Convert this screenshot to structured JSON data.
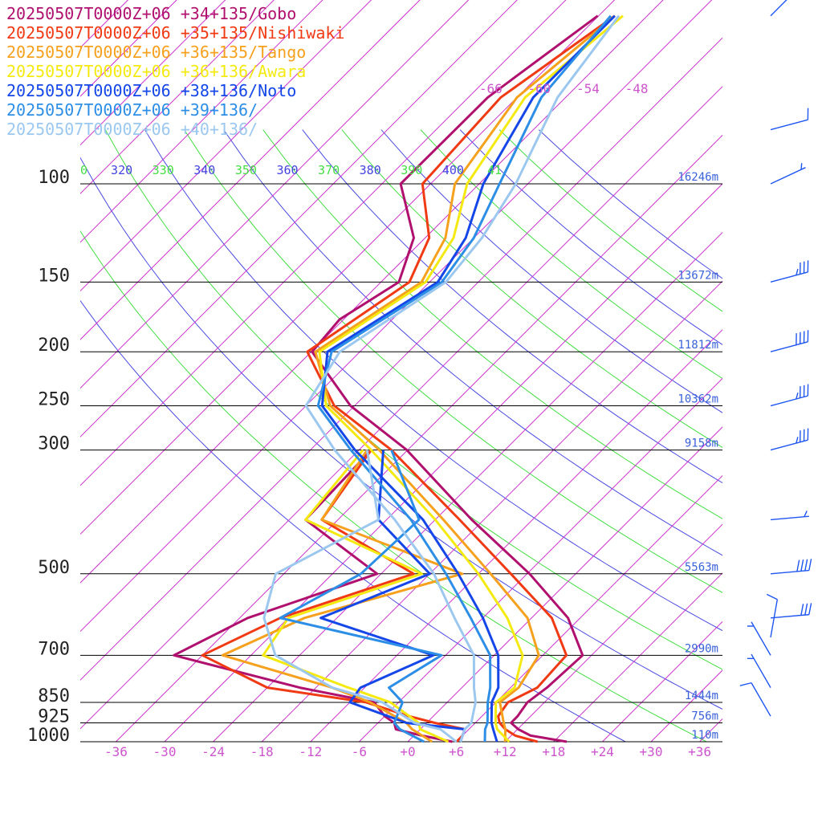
{
  "legend": [
    {
      "label": "20250507T0000Z+06 +34+135/Gobo",
      "color": "#b0106e"
    },
    {
      "label": "20250507T0000Z+06 +35+135/Nishiwaki",
      "color": "#f03a14"
    },
    {
      "label": "20250507T0000Z+06 +36+135/Tango",
      "color": "#f6a11e"
    },
    {
      "label": "20250507T0000Z+06 +36+136/Awara",
      "color": "#f4ea12"
    },
    {
      "label": "20250507T0000Z+06 +38+136/Noto",
      "color": "#1446e8"
    },
    {
      "label": "20250507T0000Z+06 +39+136/",
      "color": "#2d8ee6"
    },
    {
      "label": "20250507T0000Z+06 +40+136/",
      "color": "#9cc8f0"
    }
  ],
  "chart_data": {
    "type": "line",
    "chart_kind": "skew-t log-p sounding",
    "pressure_axis": {
      "levels": [
        100,
        150,
        200,
        250,
        300,
        500,
        700,
        850,
        925,
        1000
      ],
      "labels": [
        "100",
        "150",
        "200",
        "250",
        "300",
        "500",
        "700",
        "850",
        "925",
        "1000"
      ],
      "heights": [
        "16246m",
        "13672m",
        "11812m",
        "10362m",
        "9158m",
        "5563m",
        "2990m",
        "1444m",
        "756m",
        "110m"
      ]
    },
    "temperature_axis": {
      "ticks": [
        -36,
        -30,
        -24,
        -18,
        -12,
        -6,
        0,
        6,
        12,
        18,
        24,
        30,
        36
      ],
      "labels": [
        "-36",
        "-30",
        "-24",
        "-18",
        "-12",
        "-6",
        "+0",
        "+6",
        "+12",
        "+18",
        "+24",
        "+30",
        "+36"
      ]
    },
    "isotherm_top_labels": [
      "-66",
      "-60",
      "-54",
      "-48"
    ],
    "theta_labels": [
      {
        "text": "0",
        "color": "#44dd44"
      },
      {
        "text": "320",
        "color": "#4444dd"
      },
      {
        "text": "330",
        "color": "#44dd44"
      },
      {
        "text": "340",
        "color": "#4444dd"
      },
      {
        "text": "350",
        "color": "#44dd44"
      },
      {
        "text": "360",
        "color": "#4444dd"
      },
      {
        "text": "370",
        "color": "#44dd44"
      },
      {
        "text": "380",
        "color": "#4444dd"
      },
      {
        "text": "390",
        "color": "#44dd44"
      },
      {
        "text": "400",
        "color": "#4444dd"
      },
      {
        "text": "41",
        "color": "#44dd44"
      }
    ],
    "series": [
      {
        "name": "20250507T0000Z+06 +34+135/Gobo",
        "color": "#b0106e",
        "temperature": [
          [
            1000,
            19.6
          ],
          [
            975,
            14.4
          ],
          [
            950,
            12.1
          ],
          [
            925,
            10.4
          ],
          [
            900,
            10.4
          ],
          [
            850,
            9.9
          ],
          [
            800,
            10.5
          ],
          [
            700,
            10.9
          ],
          [
            600,
            4.5
          ],
          [
            500,
            -5.7
          ],
          [
            400,
            -19.5
          ],
          [
            300,
            -36.1
          ],
          [
            250,
            -48.5
          ],
          [
            200,
            -59.9
          ],
          [
            175,
            -60.5
          ],
          [
            150,
            -57.8
          ],
          [
            125,
            -61.4
          ],
          [
            100,
            -69.7
          ],
          [
            70,
            -69.6
          ],
          [
            50,
            -66.1
          ]
        ],
        "dewpoint": [
          [
            1000,
            5.5
          ],
          [
            975,
            1.0
          ],
          [
            950,
            -3.0
          ],
          [
            925,
            -4.0
          ],
          [
            900,
            -6.0
          ],
          [
            850,
            -9.0
          ],
          [
            800,
            -20.0
          ],
          [
            700,
            -39.5
          ],
          [
            600,
            -35.0
          ],
          [
            500,
            -24.5
          ],
          [
            400,
            -40.0
          ],
          [
            300,
            -40.5
          ]
        ]
      },
      {
        "name": "20250507T0000Z+06 +35+135/Nishiwaki",
        "color": "#f03a14",
        "temperature": [
          [
            1000,
            16.0
          ],
          [
            975,
            12.5
          ],
          [
            950,
            10.5
          ],
          [
            925,
            9.0
          ],
          [
            900,
            8.0
          ],
          [
            850,
            7.5
          ],
          [
            800,
            9.3
          ],
          [
            700,
            8.9
          ],
          [
            600,
            2.5
          ],
          [
            500,
            -8.0
          ],
          [
            400,
            -21.0
          ],
          [
            300,
            -38.0
          ],
          [
            250,
            -50.5
          ],
          [
            200,
            -60.5
          ],
          [
            150,
            -56.5
          ],
          [
            125,
            -59.5
          ],
          [
            100,
            -67.0
          ],
          [
            70,
            -68.0
          ],
          [
            50,
            -64.0
          ]
        ],
        "dewpoint": [
          [
            1000,
            6.0
          ],
          [
            975,
            6.0
          ],
          [
            950,
            5.5
          ],
          [
            925,
            1.0
          ],
          [
            900,
            -3.0
          ],
          [
            850,
            -10.0
          ],
          [
            800,
            -24.0
          ],
          [
            700,
            -36.0
          ],
          [
            600,
            -31.0
          ],
          [
            500,
            -20.0
          ],
          [
            400,
            -38.0
          ],
          [
            300,
            -40.5
          ]
        ]
      },
      {
        "name": "20250507T0000Z+06 +36+135/Tango",
        "color": "#f6a11e",
        "temperature": [
          [
            1000,
            12.0
          ],
          [
            950,
            10.5
          ],
          [
            925,
            9.5
          ],
          [
            850,
            6.5
          ],
          [
            800,
            7.0
          ],
          [
            700,
            5.5
          ],
          [
            600,
            -0.5
          ],
          [
            500,
            -10.5
          ],
          [
            400,
            -23.0
          ],
          [
            300,
            -39.5
          ],
          [
            250,
            -51.0
          ],
          [
            200,
            -59.5
          ],
          [
            150,
            -55.0
          ],
          [
            125,
            -57.5
          ],
          [
            100,
            -63.0
          ],
          [
            70,
            -66.0
          ],
          [
            50,
            -64.0
          ]
        ],
        "dewpoint": [
          [
            1000,
            3.0
          ],
          [
            950,
            -1.0
          ],
          [
            925,
            -2.5
          ],
          [
            850,
            -9.5
          ],
          [
            800,
            -16.0
          ],
          [
            700,
            -33.5
          ],
          [
            600,
            -28.0
          ],
          [
            500,
            -14.0
          ],
          [
            400,
            -38.0
          ],
          [
            300,
            -41.0
          ]
        ]
      },
      {
        "name": "20250507T0000Z+06 +36+136/Awara",
        "color": "#f4ea12",
        "temperature": [
          [
            1000,
            12.5
          ],
          [
            950,
            9.5
          ],
          [
            925,
            8.5
          ],
          [
            850,
            6.0
          ],
          [
            800,
            6.5
          ],
          [
            700,
            3.5
          ],
          [
            600,
            -3.0
          ],
          [
            500,
            -12.0
          ],
          [
            400,
            -24.0
          ],
          [
            300,
            -40.5
          ],
          [
            250,
            -51.5
          ],
          [
            200,
            -59.0
          ],
          [
            150,
            -54.5
          ],
          [
            125,
            -56.5
          ],
          [
            100,
            -61.5
          ],
          [
            70,
            -65.0
          ],
          [
            50,
            -63.0
          ]
        ],
        "dewpoint": [
          [
            1000,
            5.0
          ],
          [
            950,
            0.0
          ],
          [
            925,
            -1.0
          ],
          [
            850,
            -7.0
          ],
          [
            800,
            -14.0
          ],
          [
            700,
            -28.5
          ],
          [
            600,
            -30.0
          ],
          [
            500,
            -19.0
          ],
          [
            400,
            -40.0
          ],
          [
            300,
            -41.5
          ]
        ]
      },
      {
        "name": "20250507T0000Z+06 +38+136/Noto",
        "color": "#1446e8",
        "temperature": [
          [
            1000,
            11.0
          ],
          [
            950,
            9.0
          ],
          [
            925,
            8.0
          ],
          [
            850,
            5.5
          ],
          [
            800,
            4.5
          ],
          [
            700,
            0.5
          ],
          [
            600,
            -6.0
          ],
          [
            500,
            -14.5
          ],
          [
            400,
            -25.5
          ],
          [
            300,
            -42.5
          ],
          [
            250,
            -52.0
          ],
          [
            200,
            -58.0
          ],
          [
            150,
            -53.0
          ],
          [
            125,
            -55.0
          ],
          [
            100,
            -59.5
          ],
          [
            70,
            -64.0
          ],
          [
            50,
            -64.0
          ]
        ],
        "dewpoint": [
          [
            1000,
            6.5
          ],
          [
            950,
            5.5
          ],
          [
            925,
            -2.5
          ],
          [
            850,
            -12.0
          ],
          [
            800,
            -12.5
          ],
          [
            700,
            -7.5
          ],
          [
            600,
            -26.0
          ],
          [
            500,
            -18.0
          ],
          [
            400,
            -31.0
          ],
          [
            300,
            -39.0
          ]
        ]
      },
      {
        "name": "20250507T0000Z+06 +39+136/",
        "color": "#2d8ee6",
        "temperature": [
          [
            1000,
            9.5
          ],
          [
            950,
            8.0
          ],
          [
            925,
            7.5
          ],
          [
            850,
            5.0
          ],
          [
            800,
            3.5
          ],
          [
            700,
            -0.5
          ],
          [
            600,
            -7.5
          ],
          [
            500,
            -16.0
          ],
          [
            400,
            -27.0
          ],
          [
            300,
            -43.0
          ],
          [
            250,
            -52.5
          ],
          [
            200,
            -57.5
          ],
          [
            150,
            -52.5
          ],
          [
            125,
            -54.0
          ],
          [
            100,
            -57.5
          ],
          [
            70,
            -63.0
          ],
          [
            50,
            -64.5
          ]
        ],
        "dewpoint": [
          [
            1000,
            2.0
          ],
          [
            950,
            -2.5
          ],
          [
            925,
            -4.0
          ],
          [
            850,
            -5.5
          ],
          [
            800,
            -9.0
          ],
          [
            700,
            -6.5
          ],
          [
            600,
            -31.0
          ],
          [
            500,
            -26.5
          ],
          [
            400,
            -26.0
          ],
          [
            300,
            -38.0
          ]
        ]
      },
      {
        "name": "20250507T0000Z+06 +40+136/",
        "color": "#9cc8f0",
        "temperature": [
          [
            1000,
            6.5
          ],
          [
            950,
            5.5
          ],
          [
            925,
            5.5
          ],
          [
            850,
            3.5
          ],
          [
            800,
            1.5
          ],
          [
            700,
            -2.5
          ],
          [
            600,
            -9.5
          ],
          [
            500,
            -17.5
          ],
          [
            400,
            -29.0
          ],
          [
            300,
            -45.0
          ],
          [
            250,
            -54.0
          ],
          [
            200,
            -56.5
          ],
          [
            150,
            -52.0
          ],
          [
            125,
            -53.0
          ],
          [
            100,
            -55.5
          ],
          [
            70,
            -61.0
          ],
          [
            50,
            -63.5
          ]
        ],
        "dewpoint": [
          [
            1000,
            6.0
          ],
          [
            950,
            2.5
          ],
          [
            925,
            -1.5
          ],
          [
            850,
            -8.0
          ],
          [
            800,
            -16.0
          ],
          [
            700,
            -27.0
          ],
          [
            600,
            -33.0
          ],
          [
            500,
            -37.0
          ],
          [
            400,
            -31.0
          ],
          [
            300,
            -41.0
          ]
        ]
      }
    ],
    "wind_barbs": [
      {
        "pressure": 50,
        "direction_deg": 225,
        "speed_kt": 5
      },
      {
        "pressure": 80,
        "direction_deg": 255,
        "speed_kt": 10
      },
      {
        "pressure": 100,
        "direction_deg": 245,
        "speed_kt": 5
      },
      {
        "pressure": 150,
        "direction_deg": 255,
        "speed_kt": 35
      },
      {
        "pressure": 200,
        "direction_deg": 255,
        "speed_kt": 40
      },
      {
        "pressure": 250,
        "direction_deg": 255,
        "speed_kt": 35
      },
      {
        "pressure": 300,
        "direction_deg": 255,
        "speed_kt": 35
      },
      {
        "pressure": 400,
        "direction_deg": 265,
        "speed_kt": 5
      },
      {
        "pressure": 500,
        "direction_deg": 265,
        "speed_kt": 40
      },
      {
        "pressure": 600,
        "direction_deg": 265,
        "speed_kt": 30
      },
      {
        "pressure": 650,
        "direction_deg": 190,
        "speed_kt": 10
      },
      {
        "pressure": 700,
        "direction_deg": 150,
        "speed_kt": 5
      },
      {
        "pressure": 800,
        "direction_deg": 150,
        "speed_kt": 5
      },
      {
        "pressure": 900,
        "direction_deg": 150,
        "speed_kt": 10
      }
    ],
    "grid": true,
    "legend_position": "top-left"
  }
}
